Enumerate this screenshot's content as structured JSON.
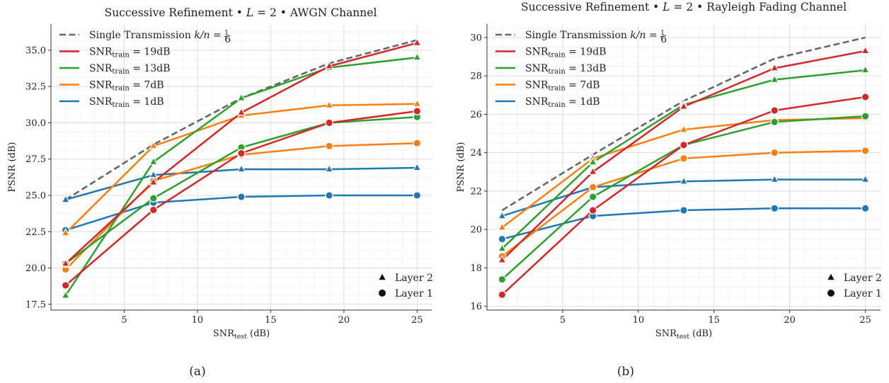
{
  "chart_data": [
    {
      "type": "line",
      "title": "Successive Refinement • L = 2 •  AWGN Channel",
      "title_parts": {
        "prefix": "Successive Refinement • ",
        "var": "L",
        "mid": " = 2 •  ",
        "suffix": "AWGN Channel"
      },
      "xlabel": {
        "main": "SNR",
        "sub": "test",
        "unit": " (dB)"
      },
      "ylabel": "PSNR (dB)",
      "caption": "(a)",
      "xlim": [
        0,
        26
      ],
      "ylim": [
        17.1,
        36.8
      ],
      "xticks": [
        5,
        10,
        15,
        20,
        25
      ],
      "yticks": [
        17.5,
        20.0,
        22.5,
        25.0,
        27.5,
        30.0,
        32.5,
        35.0
      ],
      "ytick_labels": [
        "17.5",
        "20.0",
        "22.5",
        "25.0",
        "27.5",
        "30.0",
        "32.5",
        "35.0"
      ],
      "grid": true,
      "legend_position": "top-left",
      "x": [
        1,
        7,
        13,
        19,
        25
      ],
      "reference": {
        "label": "Single Transmission k/n = 1/6",
        "label_main": "Single Transmission ",
        "label_var": "k/n",
        "label_eq": " = ",
        "frac_num": "1",
        "frac_den": "6",
        "color": "#666666",
        "values": [
          24.7,
          28.5,
          31.7,
          34.1,
          35.7
        ]
      },
      "series": [
        {
          "name": "SNRtrain = 19dB",
          "name_main": "SNR",
          "name_sub": "train",
          "name_value": " = 19dB",
          "color": "#d62728",
          "layer2": [
            20.3,
            25.9,
            30.7,
            33.9,
            35.5
          ],
          "layer1": [
            18.8,
            24.0,
            27.9,
            30.0,
            30.8
          ]
        },
        {
          "name": "SNRtrain = 13dB",
          "name_main": "SNR",
          "name_sub": "train",
          "name_value": " = 13dB",
          "color": "#2ca02c",
          "layer2": [
            18.1,
            27.3,
            31.7,
            33.8,
            34.5
          ],
          "layer1": [
            20.3,
            24.8,
            28.3,
            30.0,
            30.4
          ]
        },
        {
          "name": "SNRtrain = 7dB",
          "name_main": "SNR",
          "name_sub": "train",
          "name_value": " = 7dB",
          "color": "#ff7f0e",
          "layer2": [
            22.4,
            28.4,
            30.5,
            31.2,
            31.3
          ],
          "layer1": [
            19.9,
            26.0,
            27.8,
            28.4,
            28.6
          ]
        },
        {
          "name": "SNRtrain = 1dB",
          "name_main": "SNR",
          "name_sub": "train",
          "name_value": " = 1dB",
          "color": "#1f77b4",
          "layer2": [
            24.7,
            26.4,
            26.8,
            26.8,
            26.9
          ],
          "layer1": [
            22.6,
            24.5,
            24.9,
            25.0,
            25.0
          ]
        }
      ],
      "marker_legend": [
        {
          "label": "Layer 2",
          "marker": "triangle"
        },
        {
          "label": "Layer 1",
          "marker": "circle"
        }
      ]
    },
    {
      "type": "line",
      "title": "Successive Refinement • L = 2 • Rayleigh Fading Channel",
      "title_parts": {
        "prefix": "Successive Refinement • ",
        "var": "L",
        "mid": " = 2 • ",
        "suffix": "Rayleigh Fading Channel"
      },
      "xlabel": {
        "main": "SNR",
        "sub": "test",
        "unit": " (dB)"
      },
      "ylabel": "PSNR (dB)",
      "caption": "(b)",
      "xlim": [
        0,
        26
      ],
      "ylim": [
        15.8,
        30.7
      ],
      "xticks": [
        5,
        10,
        15,
        20,
        25
      ],
      "yticks": [
        16,
        18,
        20,
        22,
        24,
        26,
        28,
        30
      ],
      "ytick_labels": [
        "16",
        "18",
        "20",
        "22",
        "24",
        "26",
        "28",
        "30"
      ],
      "grid": true,
      "legend_position": "top-left",
      "x": [
        1,
        7,
        13,
        19,
        25
      ],
      "reference": {
        "label": "Single Transmission k/n = 1/6",
        "label_main": "Single Transmission ",
        "label_var": "k/n",
        "label_eq": " = ",
        "frac_num": "1",
        "frac_den": "6",
        "color": "#666666",
        "values": [
          21.0,
          23.9,
          26.7,
          28.9,
          30.0
        ]
      },
      "series": [
        {
          "name": "SNRtrain = 19dB",
          "name_main": "SNR",
          "name_sub": "train",
          "name_value": " = 19dB",
          "color": "#d62728",
          "layer2": [
            18.4,
            23.0,
            26.4,
            28.4,
            29.3
          ],
          "layer1": [
            16.6,
            21.0,
            24.4,
            26.2,
            26.9
          ]
        },
        {
          "name": "SNRtrain = 13dB",
          "name_main": "SNR",
          "name_sub": "train",
          "name_value": " = 13dB",
          "color": "#2ca02c",
          "layer2": [
            19.0,
            23.5,
            26.5,
            27.8,
            28.3
          ],
          "layer1": [
            17.4,
            21.7,
            24.4,
            25.6,
            25.9
          ]
        },
        {
          "name": "SNRtrain = 7dB",
          "name_main": "SNR",
          "name_sub": "train",
          "name_value": " = 7dB",
          "color": "#ff7f0e",
          "layer2": [
            20.1,
            23.7,
            25.2,
            25.7,
            25.8
          ],
          "layer1": [
            18.6,
            22.2,
            23.7,
            24.0,
            24.1
          ]
        },
        {
          "name": "SNRtrain = 1dB",
          "name_main": "SNR",
          "name_sub": "train",
          "name_value": " = 1dB",
          "color": "#1f77b4",
          "layer2": [
            20.7,
            22.2,
            22.5,
            22.6,
            22.6
          ],
          "layer1": [
            19.5,
            20.7,
            21.0,
            21.1,
            21.1
          ]
        }
      ],
      "marker_legend": [
        {
          "label": "Layer 2",
          "marker": "triangle"
        },
        {
          "label": "Layer 1",
          "marker": "circle"
        }
      ]
    }
  ]
}
